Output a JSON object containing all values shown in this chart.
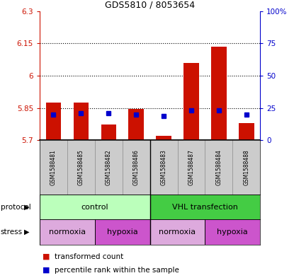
{
  "title": "GDS5810 / 8053654",
  "samples": [
    "GSM1588481",
    "GSM1588485",
    "GSM1588482",
    "GSM1588486",
    "GSM1588483",
    "GSM1588487",
    "GSM1588484",
    "GSM1588488"
  ],
  "red_values": [
    5.875,
    5.875,
    5.775,
    5.845,
    5.72,
    6.06,
    6.135,
    5.78
  ],
  "blue_values": [
    20,
    21,
    21,
    20,
    19,
    23,
    23,
    20
  ],
  "ylim_left": [
    5.7,
    6.3
  ],
  "ylim_right": [
    0,
    100
  ],
  "yticks_left": [
    5.7,
    5.85,
    6.0,
    6.15,
    6.3
  ],
  "ytick_labels_left": [
    "5.7",
    "5.85",
    "6",
    "6.15",
    "6.3"
  ],
  "yticks_right": [
    0,
    25,
    50,
    75,
    100
  ],
  "ytick_labels_right": [
    "0",
    "25",
    "50",
    "75",
    "100%"
  ],
  "hlines": [
    5.85,
    6.0,
    6.15
  ],
  "bar_color": "#cc1100",
  "dot_color": "#0000cc",
  "bar_width": 0.55,
  "baseline": 5.7,
  "protocol_groups": [
    {
      "label": "control",
      "start": 0,
      "end": 4,
      "color": "#bbffbb"
    },
    {
      "label": "VHL transfection",
      "start": 4,
      "end": 8,
      "color": "#44cc44"
    }
  ],
  "stress_groups": [
    {
      "label": "normoxia",
      "start": 0,
      "end": 2,
      "color": "#ddaadd"
    },
    {
      "label": "hypoxia",
      "start": 2,
      "end": 4,
      "color": "#cc55cc"
    },
    {
      "label": "normoxia",
      "start": 4,
      "end": 6,
      "color": "#ddaadd"
    },
    {
      "label": "hypoxia",
      "start": 6,
      "end": 8,
      "color": "#cc55cc"
    }
  ],
  "legend_red": "transformed count",
  "legend_blue": "percentile rank within the sample",
  "protocol_label": "protocol",
  "stress_label": "stress",
  "left_axis_color": "#cc1100",
  "right_axis_color": "#0000cc",
  "sample_bg_color": "#cccccc",
  "chart_bg_color": "#ffffff"
}
